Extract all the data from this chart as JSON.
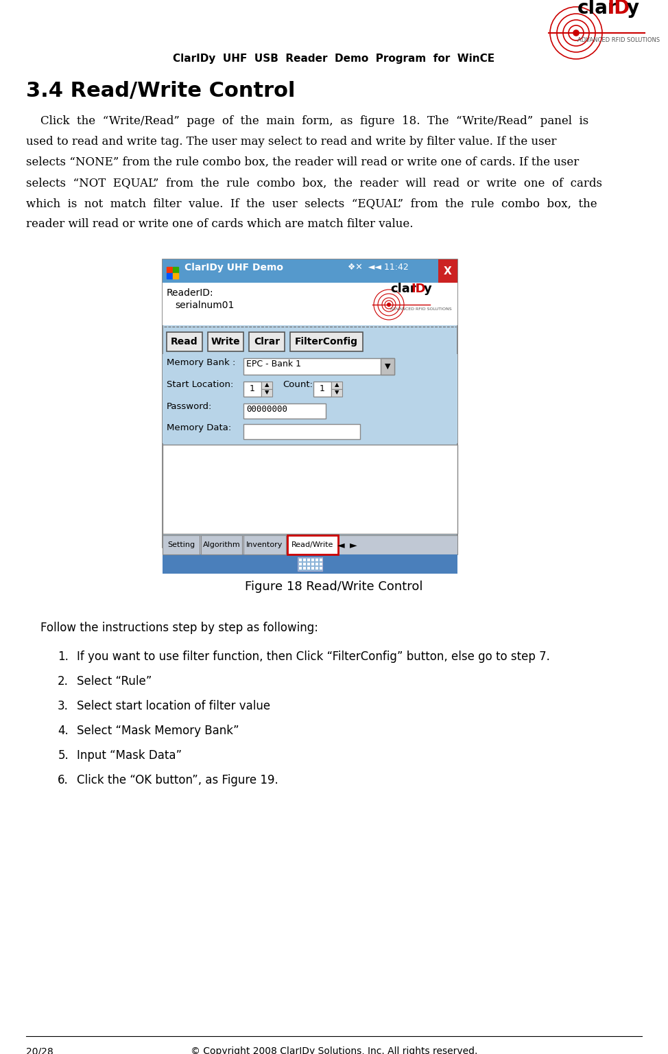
{
  "page_title": "ClarIDy  UHF  USB  Reader  Demo  Program  for  WinCE",
  "section_title": "3.4 Read/Write Control",
  "body_lines": [
    "    Click  the  “Write/Read”  page  of  the  main  form,  as  figure  18.  The  “Write/Read”  panel  is",
    "used to read and write tag. The user may select to read and write by filter value. If the user",
    "selects “NONE” from the rule combo box, the reader will read or write one of cards. If the user",
    "selects  “NOT  EQUAL”  from  the  rule  combo  box,  the  reader  will  read  or  write  one  of  cards",
    "which  is  not  match  filter  value.  If  the  user  selects  “EQUAL”  from  the  rule  combo  box,  the",
    "reader will read or write one of cards which are match filter value."
  ],
  "figure_caption": "Figure 18 Read/Write Control",
  "intro_text": "    Follow the instructions step by step as following:",
  "steps": [
    "If you want to use filter function, then Click “FilterConfig” button, else go to step 7.",
    "Select “Rule”",
    "Select start location of filter value",
    "Select “Mask Memory Bank”",
    "Input “Mask Data”",
    "Click the “OK button”, as Figure 19."
  ],
  "footer_left": "20/28",
  "footer_center": "© Copyright 2008 ClarIDy Solutions, Inc. All rights reserved.",
  "bg_color": "#ffffff",
  "text_color": "#000000",
  "screen_bg": "#b8d4e8",
  "screen_titlebar": "#4a90d0",
  "title_bar_text_color": "#ffffff"
}
